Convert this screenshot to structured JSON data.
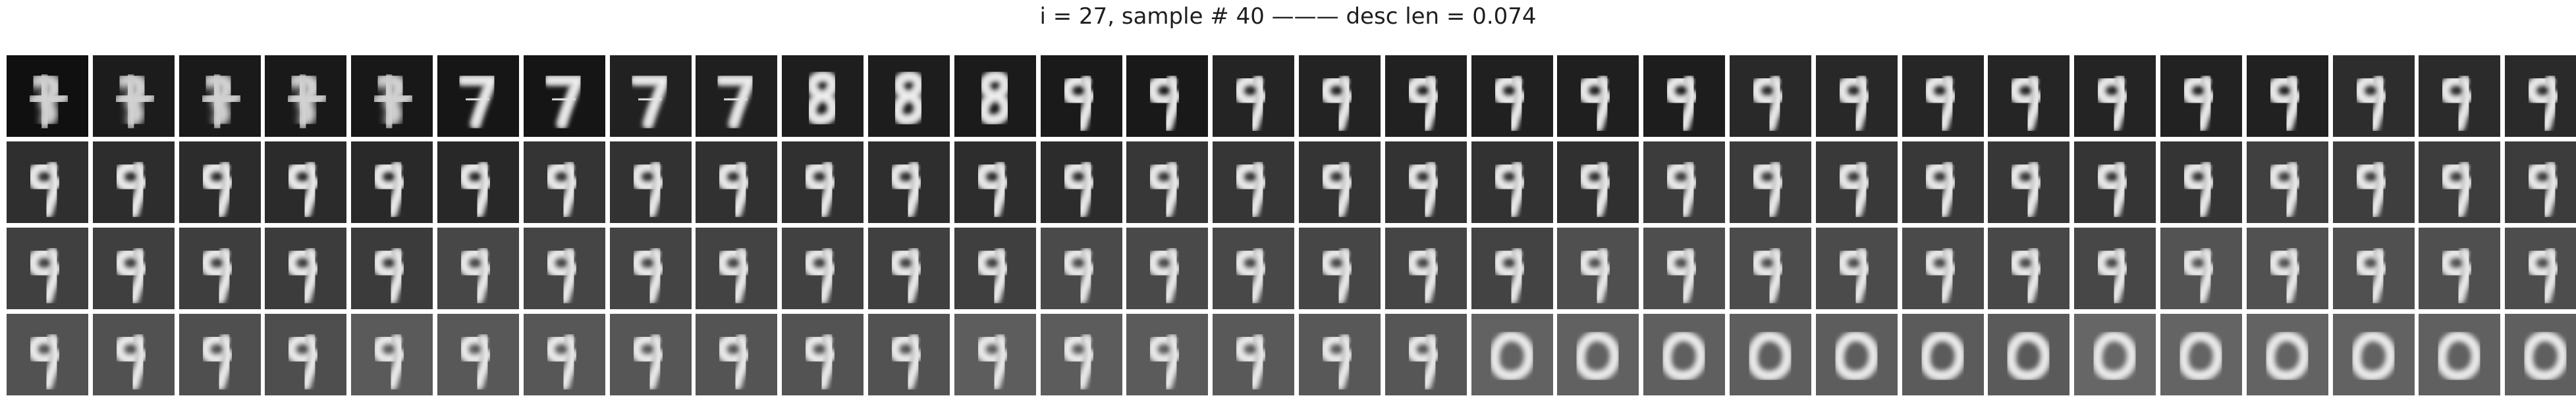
{
  "title": "i = 27, sample # 40 ——— desc len = 0.074",
  "grid": {
    "rows": 4,
    "cols": 30,
    "colormap": "grayscale",
    "row_sequences": [
      [
        "noise",
        "noise",
        "noise",
        "noise",
        "noise",
        "7",
        "7",
        "7",
        "7",
        "8",
        "8",
        "8",
        "9",
        "9",
        "9",
        "9",
        "9",
        "9",
        "9",
        "9",
        "9",
        "9",
        "9",
        "9",
        "9",
        "9",
        "9",
        "9",
        "9",
        "9"
      ],
      [
        "9",
        "9",
        "9",
        "9",
        "9",
        "9",
        "9",
        "9",
        "9",
        "9",
        "9",
        "9",
        "9",
        "9",
        "9",
        "9",
        "9",
        "9",
        "9",
        "9",
        "9",
        "9",
        "9",
        "9",
        "9",
        "9",
        "9",
        "9",
        "9",
        "9"
      ],
      [
        "9",
        "9",
        "9",
        "9",
        "9",
        "9",
        "9",
        "9",
        "9",
        "9",
        "9",
        "9",
        "9",
        "9",
        "9",
        "9",
        "9",
        "9",
        "9",
        "9",
        "9",
        "9",
        "9",
        "9",
        "9",
        "9",
        "9",
        "9",
        "9",
        "9"
      ],
      [
        "9",
        "9",
        "9",
        "9",
        "9",
        "9",
        "9",
        "9",
        "9",
        "9",
        "9",
        "9",
        "9",
        "9",
        "9",
        "9",
        "9",
        "0",
        "0",
        "0",
        "0",
        "0",
        "0",
        "0",
        "0",
        "0",
        "0",
        "0",
        "0",
        "0"
      ]
    ]
  }
}
